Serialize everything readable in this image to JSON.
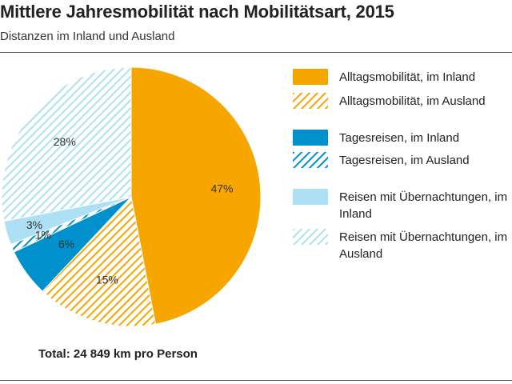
{
  "title": "Mittlere Jahresmobilität nach Mobilitätsart, 2015",
  "subtitle": "Distanzen im Inland und Ausland",
  "total_note": "Total: 24 849 km pro Person",
  "colors": {
    "orange": "#f7a600",
    "blue": "#0090cc",
    "light_blue": "#ade0f5"
  },
  "chart_data": {
    "type": "pie",
    "title": "Mittlere Jahresmobilität nach Mobilitätsart, 2015",
    "subtitle": "Distanzen im Inland und Ausland",
    "unit": "%",
    "start": "12 o'clock, clockwise",
    "slices": [
      {
        "name": "Alltagsmobilität, im Inland",
        "value": 47,
        "label": "47%",
        "color": "#f7a600",
        "pattern": "solid"
      },
      {
        "name": "Alltagsmobilität, im Ausland",
        "value": 15,
        "label": "15%",
        "color": "#f7a600",
        "pattern": "hatch"
      },
      {
        "name": "Tagesreisen, im Inland",
        "value": 6,
        "label": "6%",
        "color": "#0090cc",
        "pattern": "solid"
      },
      {
        "name": "Tagesreisen, im Ausland",
        "value": 1,
        "label": "1%",
        "color": "#0090cc",
        "pattern": "hatch"
      },
      {
        "name": "Reisen mit Übernachtungen, im Inland",
        "value": 3,
        "label": "3%",
        "color": "#ade0f5",
        "pattern": "solid"
      },
      {
        "name": "Reisen mit Übernachtungen, im Ausland",
        "value": 28,
        "label": "28%",
        "color": "#ade0f5",
        "pattern": "hatch"
      }
    ],
    "legend": [
      "Alltagsmobilität, im Inland",
      "Alltagsmobilität, im Ausland",
      "Tagesreisen, im Inland",
      "Tagesreisen, im Ausland",
      "Reisen mit Übernachtungen, im Inland",
      "Reisen mit Übernachtungen, im Ausland"
    ]
  }
}
